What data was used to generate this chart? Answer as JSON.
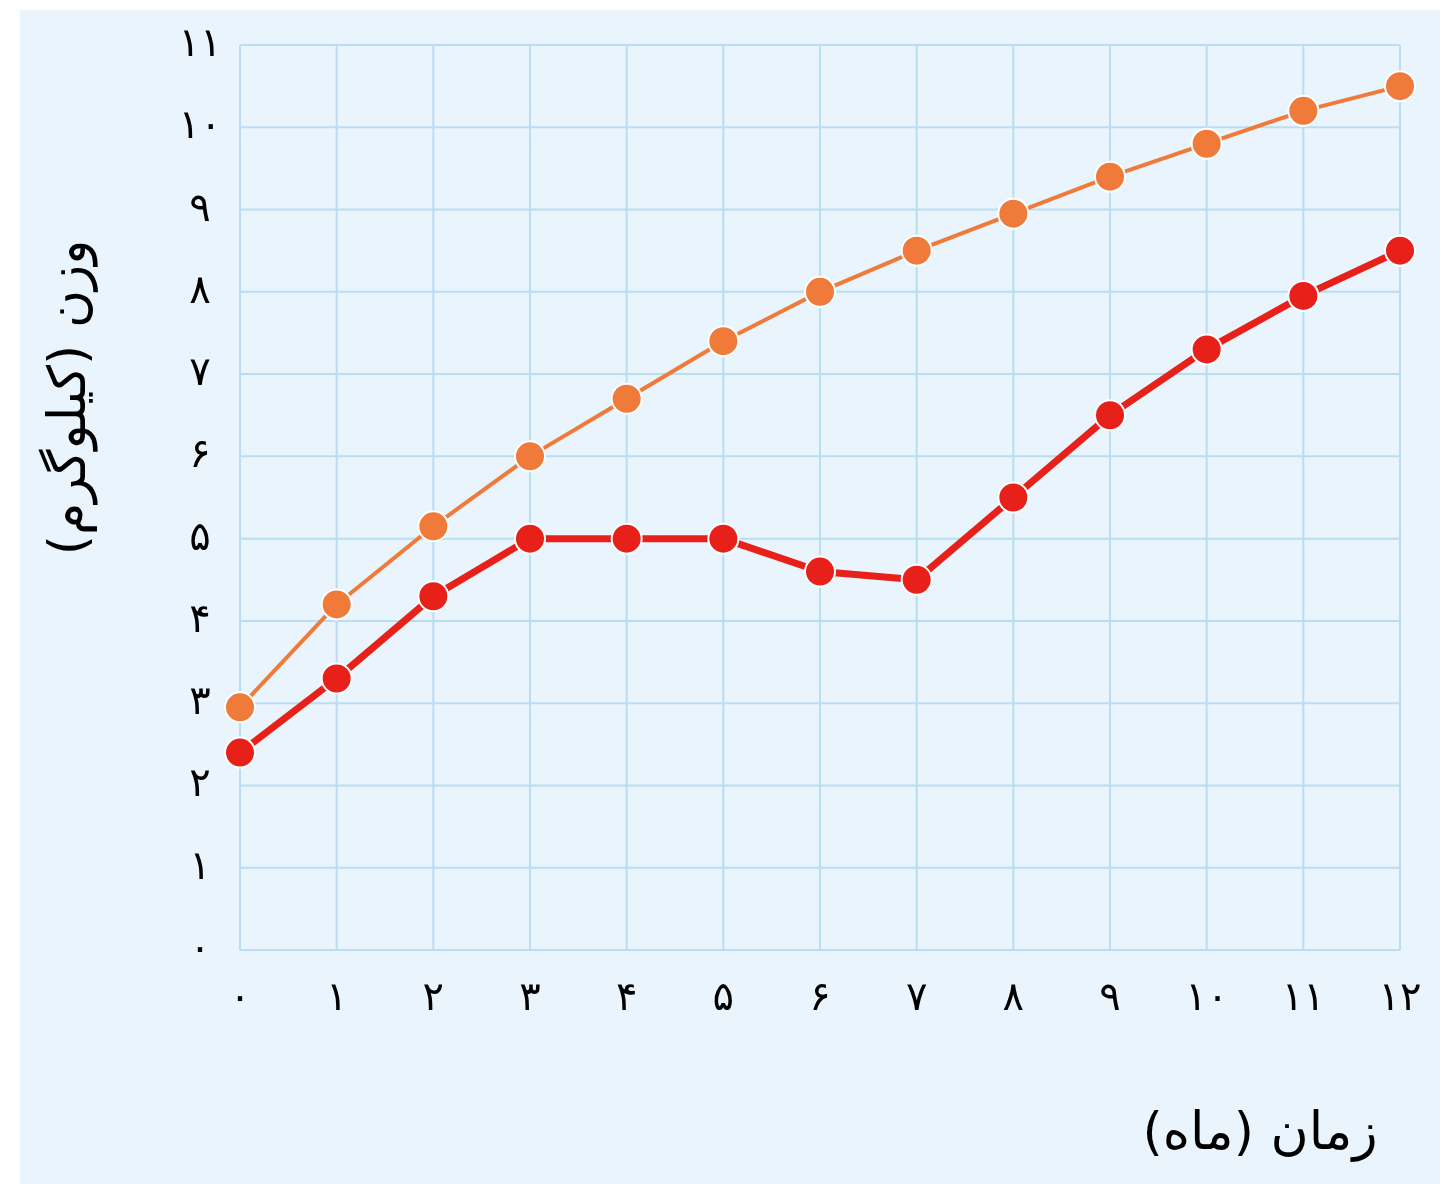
{
  "chart_data": {
    "type": "line",
    "xlabel": "زمان (ماه)",
    "ylabel": "وزن (کیلوگرم)",
    "x": [
      0,
      1,
      2,
      3,
      4,
      5,
      6,
      7,
      8,
      9,
      10,
      11,
      12
    ],
    "series": [
      {
        "color": "#f07a3a",
        "values": [
          2.95,
          4.2,
          5.15,
          6.0,
          6.7,
          7.4,
          8.0,
          8.5,
          8.95,
          9.4,
          9.8,
          10.2,
          10.5
        ]
      },
      {
        "color": "#e8201a",
        "values": [
          2.4,
          3.3,
          4.3,
          5.0,
          5.0,
          5.0,
          4.6,
          4.5,
          5.5,
          6.5,
          7.3,
          7.95,
          8.5
        ]
      }
    ],
    "xlim": [
      0,
      12
    ],
    "ylim": [
      0,
      11
    ],
    "xticks": [
      {
        "value": 0,
        "label": "۰"
      },
      {
        "value": 1,
        "label": "۱"
      },
      {
        "value": 2,
        "label": "۲"
      },
      {
        "value": 3,
        "label": "۳"
      },
      {
        "value": 4,
        "label": "۴"
      },
      {
        "value": 5,
        "label": "۵"
      },
      {
        "value": 6,
        "label": "۶"
      },
      {
        "value": 7,
        "label": "۷"
      },
      {
        "value": 8,
        "label": "۸"
      },
      {
        "value": 9,
        "label": "۹"
      },
      {
        "value": 10,
        "label": "۱۰"
      },
      {
        "value": 11,
        "label": "۱۱"
      },
      {
        "value": 12,
        "label": "۱۲"
      }
    ],
    "yticks": [
      {
        "value": 0,
        "label": "۰"
      },
      {
        "value": 1,
        "label": "۱"
      },
      {
        "value": 2,
        "label": "۲"
      },
      {
        "value": 3,
        "label": "۳"
      },
      {
        "value": 4,
        "label": "۴"
      },
      {
        "value": 5,
        "label": "۵"
      },
      {
        "value": 6,
        "label": "۶"
      },
      {
        "value": 7,
        "label": "۷"
      },
      {
        "value": 8,
        "label": "۸"
      },
      {
        "value": 9,
        "label": "۹"
      },
      {
        "value": 10,
        "label": "۱۰"
      },
      {
        "value": 11,
        "label": "۱۱"
      }
    ],
    "grid": true,
    "marker": "circle",
    "line_style": "solid"
  }
}
